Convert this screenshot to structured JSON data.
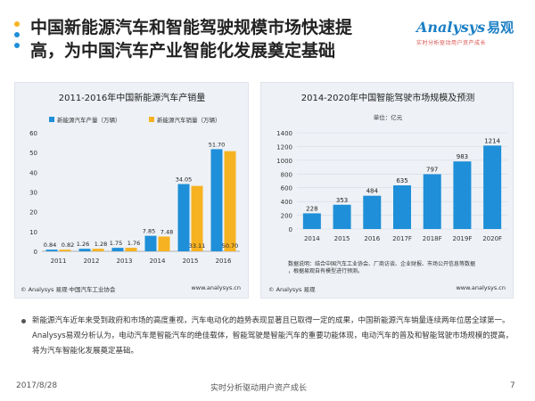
{
  "slide": {
    "title_line1": "中国新能源汽车和智能驾驶规模市场快速提",
    "title_line2": "高，为中国汽车产业智能化发展奠定基础",
    "logo_text": "Analysys",
    "logo_cn": "易观",
    "logo_tagline": "实时分析驱动用户资产成长",
    "bullet": "新能源汽车近年来受到政府和市场的高度重视，汽车电动化的趋势表现显著且已取得一定的成果，中国新能源汽车销量连续两年位居全球第一。Analysys易观分析认为，电动汽车是智能汽车的绝佳载体，智能驾驶是智能汽车的重要功能体现，电动汽车的普及和智能驾驶市场规模的提高，将为汽车智能化发展奠定基础。",
    "date": "2017/8/28",
    "footer_center": "实时分析驱动用户资产成长",
    "page_number": "7",
    "colors": {
      "blue": "#1e8fd8",
      "orange": "#f6b221",
      "accent_red": "#d9534f"
    }
  },
  "chart_data": [
    {
      "type": "bar",
      "title": "2011-2016年中国新能源汽车产销量",
      "categories": [
        "2011",
        "2012",
        "2013",
        "2014",
        "2015",
        "2016"
      ],
      "series": [
        {
          "name": "新能源汽车产量（万辆）",
          "values": [
            0.84,
            1.26,
            1.75,
            7.85,
            34.05,
            51.7
          ],
          "labels": [
            "0.84",
            "1.26",
            "1.75",
            "7.85",
            "34.05",
            "51.70"
          ]
        },
        {
          "name": "新能源汽车销量（万辆）",
          "values": [
            0.82,
            1.28,
            1.76,
            7.48,
            33.11,
            50.7
          ],
          "labels": [
            "0.82",
            "1.28",
            "1.76",
            "7.48",
            "33.11",
            "50.70"
          ]
        }
      ],
      "yticks": [
        "0",
        "10",
        "20",
        "30",
        "40",
        "50",
        "60"
      ],
      "ylim": [
        0,
        60
      ],
      "source": "© Analysys 易观·中国汽车工业协会",
      "site": "www.analysys.cn"
    },
    {
      "type": "bar",
      "title": "2014-2020年中国智能驾驶市场规模及预测",
      "unit": "单位：亿元",
      "categories": [
        "2014",
        "2015",
        "2016",
        "2017F",
        "2018F",
        "2019F",
        "2020F"
      ],
      "values": [
        228,
        353,
        484,
        635,
        797,
        983,
        1214
      ],
      "labels": [
        "228",
        "353",
        "484",
        "635",
        "797",
        "983",
        "1214"
      ],
      "yticks": [
        "0",
        "200",
        "400",
        "600",
        "800",
        "1000",
        "1200",
        "1400"
      ],
      "ylim": [
        0,
        1400
      ],
      "note_line1": "数据说明：结合中国汽车工业协会、厂商访谈、企业财报、市场公开信息等数据",
      "note_line2": "，根据易观自有模型进行预测。",
      "source": "© Analysys 易观",
      "site": "www.analysys.cn"
    }
  ]
}
